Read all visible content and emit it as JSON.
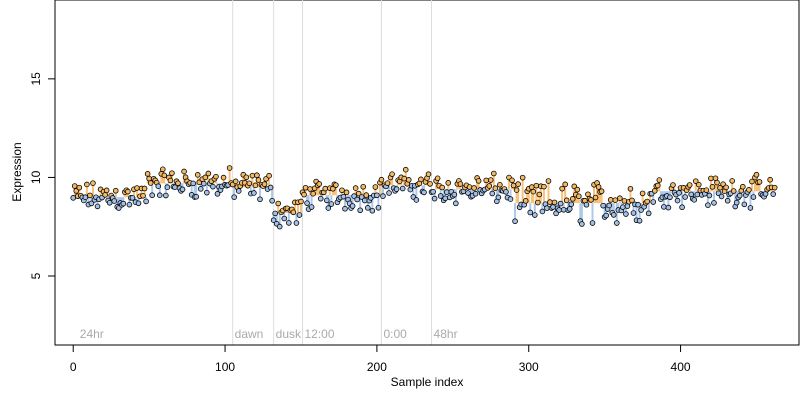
{
  "chart_data": {
    "type": "scatter",
    "title": "",
    "xlabel": "Sample index",
    "ylabel": "Expression",
    "xlim": [
      -12,
      478
    ],
    "ylim": [
      1.5,
      19
    ],
    "xticks": [
      0,
      100,
      200,
      300,
      400
    ],
    "yticks": [
      5,
      10,
      15
    ],
    "grid": false,
    "legend": "none",
    "colors": {
      "point_fill_orange": "#f5b964",
      "point_fill_blue": "#a3c1e8",
      "bar_orange": "#f7c27a",
      "bar_blue": "#aec8ea",
      "point_edge": "#000000",
      "vline": "#dddddd",
      "annotation_text": "#aaaaaa"
    },
    "annotations": [
      {
        "x": 3,
        "label": "24hr",
        "line": false
      },
      {
        "x": 105,
        "label": "dawn",
        "line": true
      },
      {
        "x": 132,
        "label": "dusk",
        "line": true
      },
      {
        "x": 151,
        "label": "12:00",
        "line": true
      },
      {
        "x": 203,
        "label": "0:00",
        "line": true
      },
      {
        "x": 236,
        "label": "48hr",
        "line": true
      }
    ],
    "segments": [
      {
        "x_start": 0,
        "x_end": 48,
        "level": 9.0
      },
      {
        "x_start": 49,
        "x_end": 104,
        "level": 9.7
      },
      {
        "x_start": 105,
        "x_end": 131,
        "level": 9.5
      },
      {
        "x_start": 132,
        "x_end": 150,
        "level": 8.2
      },
      {
        "x_start": 151,
        "x_end": 202,
        "level": 9.1
      },
      {
        "x_start": 203,
        "x_end": 235,
        "level": 9.6
      },
      {
        "x_start": 236,
        "x_end": 290,
        "level": 9.4
      },
      {
        "x_start": 291,
        "x_end": 380,
        "level": 8.7
      },
      {
        "x_start": 381,
        "x_end": 462,
        "level": 9.3
      }
    ],
    "points_count": 463,
    "deviation_amplitude": 0.9
  }
}
